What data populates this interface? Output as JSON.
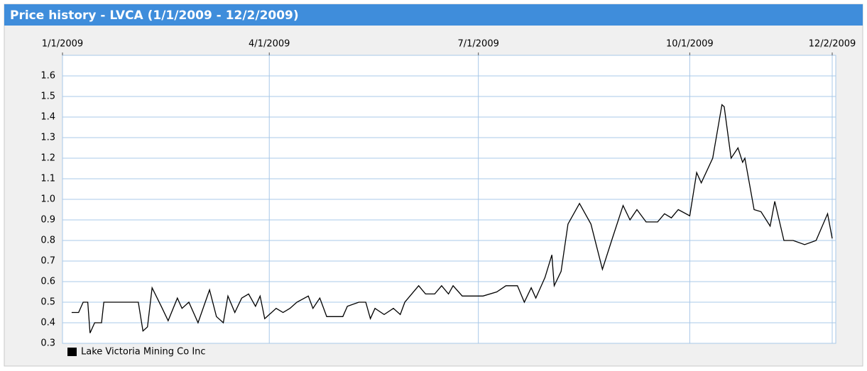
{
  "chart_data": {
    "type": "line",
    "title": "Price history - LVCA (1/1/2009 - 12/2/2009)",
    "xlim": [
      "1/1/2009",
      "12/2/2009"
    ],
    "xticks": [
      "1/1/2009",
      "4/1/2009",
      "7/1/2009",
      "10/1/2009",
      "12/2/2009"
    ],
    "ylim": [
      0.3,
      1.7
    ],
    "yticks": [
      0.3,
      0.4,
      0.5,
      0.6,
      0.7,
      0.8,
      0.9,
      {
        "value": 1,
        "label": "1.0"
      },
      1.1,
      1.2,
      1.3,
      1.4,
      1.5,
      1.6
    ],
    "grid": true,
    "legend": "bottom-left",
    "x": [
      "1/5/2009",
      "1/8/2009",
      "1/10/2009",
      "1/12/2009",
      "1/13/2009",
      "1/15/2009",
      "1/18/2009",
      "1/19/2009",
      "2/3/2009",
      "2/5/2009",
      "2/7/2009",
      "2/9/2009",
      "2/13/2009",
      "2/16/2009",
      "2/20/2009",
      "2/22/2009",
      "2/25/2009",
      "3/1/2009",
      "3/6/2009",
      "3/9/2009",
      "3/12/2009",
      "3/14/2009",
      "3/17/2009",
      "3/20/2009",
      "3/23/2009",
      "3/26/2009",
      "3/28/2009",
      "3/30/2009",
      "4/4/2009",
      "4/7/2009",
      "4/10/2009",
      "4/13/2009",
      "4/18/2009",
      "4/20/2009",
      "4/23/2009",
      "4/26/2009",
      "5/3/2009",
      "5/5/2009",
      "5/10/2009",
      "5/13/2009",
      "5/15/2009",
      "5/17/2009",
      "5/21/2009",
      "5/25/2009",
      "5/28/2009",
      "5/30/2009",
      "6/5/2009",
      "6/8/2009",
      "6/12/2009",
      "6/15/2009",
      "6/18/2009",
      "6/20/2009",
      "6/24/2009",
      "7/3/2009",
      "7/9/2009",
      "7/13/2009",
      "7/18/2009",
      "7/21/2009",
      "7/24/2009",
      "7/26/2009",
      "7/30/2009",
      "8/2/2009",
      "8/3/2009",
      "8/6/2009",
      "8/9/2009",
      "8/14/2009",
      "8/19/2009",
      "8/24/2009",
      "8/28/2009",
      "9/2/2009",
      "9/5/2009",
      "9/8/2009",
      "9/12/2009",
      "9/17/2009",
      "9/20/2009",
      "9/23/2009",
      "9/26/2009",
      "10/1/2009",
      "10/4/2009",
      "10/6/2009",
      "10/11/2009",
      "10/15/2009",
      "10/16/2009",
      "10/19/2009",
      "10/22/2009",
      "10/24/2009",
      "10/25/2009",
      "10/29/2009",
      "11/1/2009",
      "11/5/2009",
      "11/7/2009",
      "11/11/2009",
      "11/15/2009",
      "11/20/2009",
      "11/25/2009",
      "11/30/2009",
      "12/2/2009"
    ],
    "series": [
      {
        "name": "Lake Victoria Mining Co Inc",
        "color": "#000000",
        "values": [
          0.45,
          0.45,
          0.5,
          0.5,
          0.35,
          0.4,
          0.4,
          0.5,
          0.5,
          0.36,
          0.38,
          0.57,
          0.48,
          0.41,
          0.52,
          0.47,
          0.5,
          0.4,
          0.56,
          0.43,
          0.4,
          0.53,
          0.45,
          0.52,
          0.54,
          0.48,
          0.53,
          0.42,
          0.47,
          0.45,
          0.47,
          0.5,
          0.53,
          0.47,
          0.52,
          0.43,
          0.43,
          0.48,
          0.5,
          0.5,
          0.42,
          0.47,
          0.44,
          0.47,
          0.44,
          0.5,
          0.58,
          0.54,
          0.54,
          0.58,
          0.54,
          0.58,
          0.53,
          0.53,
          0.55,
          0.58,
          0.58,
          0.5,
          0.57,
          0.52,
          0.62,
          0.73,
          0.58,
          0.65,
          0.88,
          0.98,
          0.88,
          0.66,
          0.8,
          0.97,
          0.9,
          0.95,
          0.89,
          0.89,
          0.93,
          0.91,
          0.95,
          0.92,
          1.13,
          1.08,
          1.2,
          1.46,
          1.45,
          1.2,
          1.25,
          1.18,
          1.2,
          0.95,
          0.94,
          0.87,
          0.99,
          0.8,
          0.8,
          0.78,
          0.8,
          0.93,
          0.81
        ]
      }
    ]
  }
}
